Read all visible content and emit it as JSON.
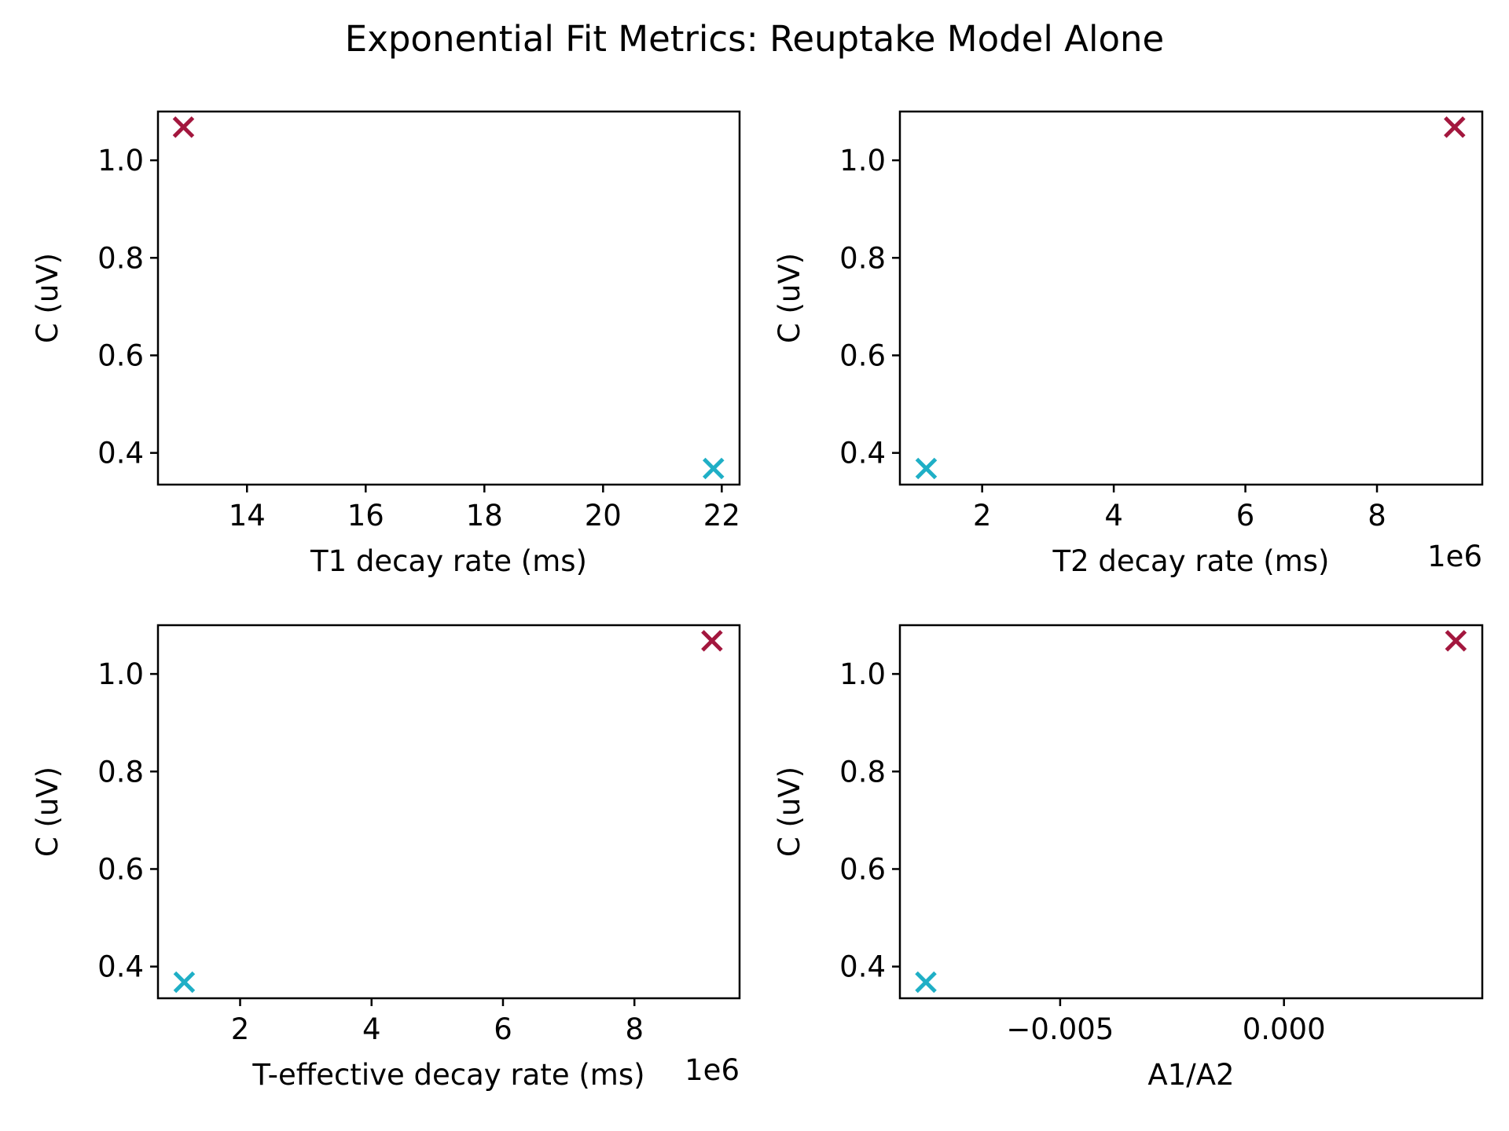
{
  "figure": {
    "title": "Exponential Fit Metrics: Reuptake Model Alone"
  },
  "chart_data": [
    {
      "type": "scatter",
      "title": "",
      "xlabel": "T1 decay rate (ms)",
      "ylabel": "C (uV)",
      "x_offset_label": "",
      "xlim": [
        12.5,
        22.3
      ],
      "ylim": [
        0.335,
        1.1
      ],
      "xticks": [
        14,
        16,
        18,
        20,
        22
      ],
      "xtick_labels": [
        "14",
        "16",
        "18",
        "20",
        "22"
      ],
      "yticks": [
        0.4,
        0.6,
        0.8,
        1.0
      ],
      "ytick_labels": [
        "0.4",
        "0.6",
        "0.8",
        "1.0"
      ],
      "points": [
        {
          "x": 12.93,
          "y": 1.068,
          "color": "#a3173e",
          "marker": "x"
        },
        {
          "x": 21.86,
          "y": 0.368,
          "color": "#1fafc6",
          "marker": "x"
        }
      ]
    },
    {
      "type": "scatter",
      "title": "",
      "xlabel": "T2 decay rate (ms)",
      "ylabel": "C (uV)",
      "x_offset_label": "1e6",
      "xlim": [
        0.75,
        9.6
      ],
      "ylim": [
        0.335,
        1.1
      ],
      "xticks": [
        2,
        4,
        6,
        8
      ],
      "xtick_labels": [
        "2",
        "4",
        "6",
        "8"
      ],
      "yticks": [
        0.4,
        0.6,
        0.8,
        1.0
      ],
      "ytick_labels": [
        "0.4",
        "0.6",
        "0.8",
        "1.0"
      ],
      "points": [
        {
          "x": 9.18,
          "y": 1.068,
          "color": "#a3173e",
          "marker": "x"
        },
        {
          "x": 1.15,
          "y": 0.368,
          "color": "#1fafc6",
          "marker": "x"
        }
      ]
    },
    {
      "type": "scatter",
      "title": "",
      "xlabel": "T-effective decay rate (ms)",
      "ylabel": "C (uV)",
      "x_offset_label": "1e6",
      "xlim": [
        0.75,
        9.6
      ],
      "ylim": [
        0.335,
        1.1
      ],
      "xticks": [
        2,
        4,
        6,
        8
      ],
      "xtick_labels": [
        "2",
        "4",
        "6",
        "8"
      ],
      "yticks": [
        0.4,
        0.6,
        0.8,
        1.0
      ],
      "ytick_labels": [
        "0.4",
        "0.6",
        "0.8",
        "1.0"
      ],
      "points": [
        {
          "x": 9.18,
          "y": 1.068,
          "color": "#a3173e",
          "marker": "x"
        },
        {
          "x": 1.15,
          "y": 0.368,
          "color": "#1fafc6",
          "marker": "x"
        }
      ]
    },
    {
      "type": "scatter",
      "title": "",
      "xlabel": "A1/A2",
      "ylabel": "C (uV)",
      "x_offset_label": "",
      "xlim": [
        -0.00858,
        0.00443
      ],
      "ylim": [
        0.335,
        1.1
      ],
      "xticks": [
        -0.005,
        0.0
      ],
      "xtick_labels": [
        "−0.005",
        "0.000"
      ],
      "yticks": [
        0.4,
        0.6,
        0.8,
        1.0
      ],
      "ytick_labels": [
        "0.4",
        "0.6",
        "0.8",
        "1.0"
      ],
      "points": [
        {
          "x": 0.00384,
          "y": 1.068,
          "color": "#a3173e",
          "marker": "x"
        },
        {
          "x": -0.008,
          "y": 0.368,
          "color": "#1fafc6",
          "marker": "x"
        }
      ]
    }
  ]
}
